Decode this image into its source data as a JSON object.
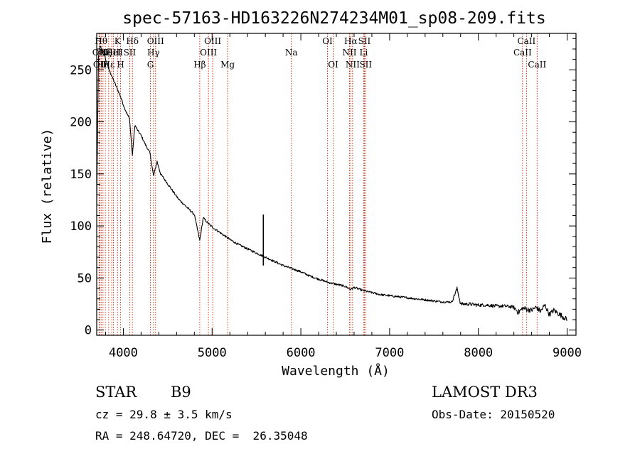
{
  "chart_data": {
    "type": "line",
    "title": "spec-57163-HD163226N274234M01_sp08-209.fits",
    "xlabel": "Wavelength (Å)",
    "ylabel": "Flux (relative)",
    "xlim": [
      3700,
      9100
    ],
    "ylim": [
      -5,
      285
    ],
    "xticks": [
      4000,
      5000,
      6000,
      7000,
      8000,
      9000
    ],
    "yticks": [
      0,
      50,
      100,
      150,
      200,
      250
    ],
    "grid": false,
    "series": [
      {
        "name": "spectrum",
        "x": [
          3700,
          3720,
          3740,
          3760,
          3780,
          3800,
          3820,
          3840,
          3860,
          3880,
          3900,
          3920,
          3950,
          3970,
          3990,
          4010,
          4040,
          4070,
          4102,
          4130,
          4160,
          4200,
          4250,
          4300,
          4340,
          4380,
          4420,
          4470,
          4520,
          4570,
          4620,
          4680,
          4740,
          4800,
          4861,
          4900,
          4950,
          5000,
          5100,
          5200,
          5300,
          5400,
          5500,
          5600,
          5700,
          5800,
          5900,
          6000,
          6100,
          6200,
          6300,
          6400,
          6500,
          6563,
          6600,
          6700,
          6800,
          6900,
          7000,
          7100,
          7200,
          7300,
          7400,
          7500,
          7600,
          7700,
          7760,
          7800,
          7900,
          8000,
          8100,
          8200,
          8300,
          8400,
          8450,
          8500,
          8550,
          8600,
          8650,
          8700,
          8750,
          8800,
          8850,
          8900,
          8950,
          9000
        ],
        "y": [
          120,
          262,
          272,
          268,
          265,
          260,
          255,
          250,
          246,
          242,
          238,
          234,
          228,
          224,
          219,
          214,
          208,
          203,
          168,
          197,
          192,
          187,
          178,
          170,
          148,
          162,
          150,
          144,
          138,
          132,
          126,
          121,
          116,
          111,
          86,
          108,
          103,
          99,
          93,
          87,
          82,
          78,
          74,
          70,
          66,
          62,
          59,
          56,
          52,
          49,
          46,
          44,
          42,
          39,
          41,
          38,
          36,
          34,
          33,
          32,
          31,
          30,
          29,
          28,
          27,
          27,
          40,
          25,
          25,
          24,
          24,
          23,
          23,
          22,
          17,
          21,
          20,
          19,
          22,
          18,
          24,
          15,
          19,
          16,
          13,
          10
        ]
      }
    ],
    "annotations": [
      {
        "type": "spike",
        "x": 5577,
        "y": 111
      }
    ],
    "spectral_lines": [
      {
        "wave": 3727,
        "label": "OII",
        "row": 2
      },
      {
        "wave": 3736,
        "label": "OII",
        "row": 3
      },
      {
        "wave": 3750,
        "label": "Hθ",
        "row": 1
      },
      {
        "wave": 3771,
        "label": "Hη",
        "row": 3
      },
      {
        "wave": 3797,
        "label": "Hζ",
        "row": 2
      },
      {
        "wave": 3835,
        "label": "Hε",
        "row": 3
      },
      {
        "wave": 3869,
        "label": "NeIII",
        "row": 2
      },
      {
        "wave": 3889,
        "label": "HeI",
        "row": 2
      },
      {
        "wave": 3934,
        "label": "K",
        "row": 1
      },
      {
        "wave": 3969,
        "label": "H",
        "row": 3
      },
      {
        "wave": 4072,
        "label": "SII",
        "row": 2
      },
      {
        "wave": 4102,
        "label": "Hδ",
        "row": 1
      },
      {
        "wave": 4305,
        "label": "G",
        "row": 3
      },
      {
        "wave": 4340,
        "label": "Hγ",
        "row": 2
      },
      {
        "wave": 4363,
        "label": "OIII",
        "row": 1
      },
      {
        "wave": 4861,
        "label": "Hβ",
        "row": 3
      },
      {
        "wave": 4959,
        "label": "OIII",
        "row": 2
      },
      {
        "wave": 5007,
        "label": "OIII",
        "row": 1
      },
      {
        "wave": 5175,
        "label": "Mg",
        "row": 3
      },
      {
        "wave": 5893,
        "label": "Na",
        "row": 2
      },
      {
        "wave": 6300,
        "label": "OI",
        "row": 1
      },
      {
        "wave": 6364,
        "label": "OI",
        "row": 3
      },
      {
        "wave": 6548,
        "label": "NII",
        "row": 2
      },
      {
        "wave": 6563,
        "label": "Hα",
        "row": 1
      },
      {
        "wave": 6583,
        "label": "NII",
        "row": 3
      },
      {
        "wave": 6708,
        "label": "Li",
        "row": 2
      },
      {
        "wave": 6716,
        "label": "SII",
        "row": 1
      },
      {
        "wave": 6731,
        "label": "SII",
        "row": 3
      },
      {
        "wave": 8498,
        "label": "CaII",
        "row": 2
      },
      {
        "wave": 8542,
        "label": "CaII",
        "row": 1
      },
      {
        "wave": 8662,
        "label": "CaII",
        "row": 3
      }
    ]
  },
  "info": {
    "object_class": "STAR",
    "subclass": "B9",
    "survey": "LAMOST DR3",
    "cz": "cz = 29.8 ± 3.5 km/s",
    "obs_date": "Obs-Date: 20150520",
    "coords": "RA = 248.64720, DEC =  26.35048"
  },
  "colors": {
    "spectrum": "#000000",
    "line_markers": "#cc2200",
    "axes": "#000000"
  }
}
